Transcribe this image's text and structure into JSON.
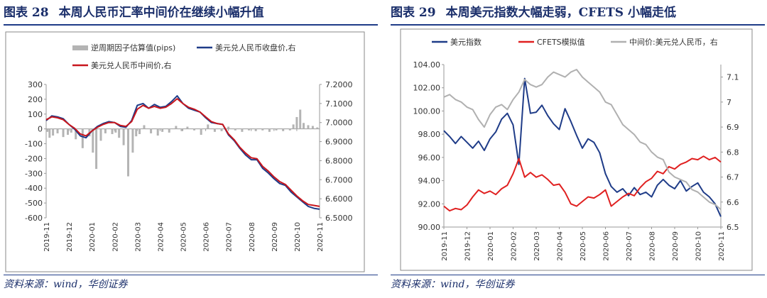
{
  "charts": [
    {
      "id": "left",
      "fig_label": "图表 28",
      "title": "本周人民币汇率中间价在继续小幅升值",
      "source": "资料来源：wind，华创证券",
      "chart_data": {
        "type": "bar+line",
        "x_labels": [
          "2019-11",
          "2019-12",
          "2020-01",
          "2020-02",
          "2020-03",
          "2020-04",
          "2020-05",
          "2020-06",
          "2020-07",
          "2020-08",
          "2020-09",
          "2020-10",
          "2020-11"
        ],
        "y_left": {
          "min": -600,
          "max": 300,
          "ticks": [
            "300",
            "200",
            "100",
            "0",
            "-100",
            "-200",
            "-300",
            "-400",
            "-500",
            "-600"
          ]
        },
        "y_right": {
          "min": 6.5,
          "max": 7.2,
          "ticks": [
            "7.2000",
            "7.1000",
            "7.0000",
            "6.9000",
            "6.8000",
            "6.7000",
            "6.6000",
            "6.5000"
          ]
        },
        "legend": {
          "placement": "top-right"
        },
        "grid": false,
        "series": [
          {
            "name": "逆周期因子估算值(pips)",
            "axis": "left",
            "kind": "bar",
            "color": "#b4b4b4",
            "x": [
              0.05,
              0.15,
              0.3,
              0.5,
              0.75,
              0.95,
              1.1,
              1.3,
              1.6,
              1.9,
              2.05,
              2.2,
              2.4,
              2.6,
              2.9,
              3.05,
              3.2,
              3.4,
              3.6,
              3.8,
              3.95,
              4.1,
              4.3,
              4.6,
              4.9,
              5.1,
              5.4,
              5.7,
              5.95,
              6.2,
              6.5,
              6.8,
              7.1,
              7.4,
              7.7,
              8.0,
              8.3,
              8.6,
              8.9,
              9.2,
              9.5,
              9.8,
              10.1,
              10.4,
              10.7,
              10.85,
              11.0,
              11.15,
              11.3,
              11.5,
              11.7,
              11.9
            ],
            "y": [
              -20,
              -60,
              -45,
              -30,
              -55,
              -40,
              -25,
              -70,
              -130,
              -50,
              -160,
              -270,
              -80,
              -30,
              -35,
              -25,
              -60,
              -110,
              -320,
              -160,
              -50,
              -35,
              25,
              -30,
              -45,
              -20,
              -25,
              20,
              -15,
              15,
              -10,
              -40,
              30,
              -20,
              -15,
              15,
              -10,
              -20,
              -10,
              -15,
              -10,
              -20,
              -10,
              -15,
              -10,
              30,
              80,
              130,
              40,
              25,
              20,
              10
            ]
          },
          {
            "name": "美元兑人民币收盘价,右",
            "axis": "right",
            "kind": "line",
            "color": "#1f3c88",
            "x": [
              0,
              0.25,
              0.5,
              0.75,
              1.0,
              1.25,
              1.5,
              1.75,
              2.0,
              2.25,
              2.5,
              2.75,
              3.0,
              3.25,
              3.5,
              3.75,
              4.0,
              4.25,
              4.5,
              4.75,
              5.0,
              5.25,
              5.5,
              5.75,
              6.0,
              6.25,
              6.5,
              6.75,
              7.0,
              7.25,
              7.5,
              7.75,
              8.0,
              8.25,
              8.5,
              8.75,
              9.0,
              9.25,
              9.5,
              9.75,
              10.0,
              10.25,
              10.5,
              10.75,
              11.0,
              11.25,
              11.5,
              11.75,
              12.0
            ],
            "y": [
              7.01,
              7.035,
              7.03,
              7.02,
              6.99,
              6.965,
              6.93,
              6.92,
              6.955,
              6.98,
              6.995,
              7.005,
              7.0,
              6.98,
              6.975,
              7.01,
              7.09,
              7.1,
              7.075,
              7.095,
              7.08,
              7.085,
              7.11,
              7.14,
              7.1,
              7.075,
              7.065,
              7.055,
              7.025,
              7.0,
              6.995,
              6.99,
              6.935,
              6.905,
              6.865,
              6.83,
              6.805,
              6.805,
              6.76,
              6.735,
              6.705,
              6.68,
              6.67,
              6.635,
              6.61,
              6.585,
              6.56,
              6.55,
              6.545
            ]
          },
          {
            "name": "美元兑人民币中间价,右",
            "axis": "right",
            "kind": "line",
            "color": "#c8161d",
            "x": [
              0,
              0.25,
              0.5,
              0.75,
              1.0,
              1.25,
              1.5,
              1.75,
              2.0,
              2.25,
              2.5,
              2.75,
              3.0,
              3.25,
              3.5,
              3.75,
              4.0,
              4.25,
              4.5,
              4.75,
              5.0,
              5.25,
              5.5,
              5.75,
              6.0,
              6.25,
              6.5,
              6.75,
              7.0,
              7.25,
              7.5,
              7.75,
              8.0,
              8.25,
              8.5,
              8.75,
              9.0,
              9.25,
              9.5,
              9.75,
              10.0,
              10.25,
              10.5,
              10.75,
              11.0,
              11.25,
              11.5,
              11.75,
              12.0
            ],
            "y": [
              7.015,
              7.03,
              7.025,
              7.015,
              6.99,
              6.97,
              6.94,
              6.93,
              6.955,
              6.975,
              6.99,
              7.0,
              7.0,
              6.985,
              6.98,
              7.005,
              7.07,
              7.09,
              7.075,
              7.085,
              7.075,
              7.08,
              7.1,
              7.125,
              7.1,
              7.08,
              7.07,
              7.055,
              7.03,
              7.005,
              6.995,
              6.99,
              6.94,
              6.91,
              6.87,
              6.84,
              6.815,
              6.81,
              6.77,
              6.745,
              6.715,
              6.69,
              6.675,
              6.645,
              6.615,
              6.59,
              6.57,
              6.565,
              6.56
            ]
          }
        ]
      }
    },
    {
      "id": "right",
      "fig_label": "图表 29",
      "title": "本周美元指数大幅走弱，CFETS 小幅走低",
      "source": "资料来源：wind，华创证券",
      "chart_data": {
        "type": "line",
        "x_labels": [
          "2019-11",
          "2019-12",
          "2020-01",
          "2020-02",
          "2020-03",
          "2020-04",
          "2020-05",
          "2020-06",
          "2020-07",
          "2020-08",
          "2020-09",
          "2020-10",
          "2020-11"
        ],
        "y_left": {
          "min": 90,
          "max": 104,
          "ticks": [
            "104.00",
            "102.00",
            "100.00",
            "98.00",
            "96.00",
            "94.00",
            "92.00",
            "90.00"
          ]
        },
        "y_right": {
          "min": 6.5,
          "max": 7.15,
          "ticks": [
            "7.1",
            "7",
            "6.9",
            "6.8",
            "6.7",
            "6.6",
            "6.5"
          ]
        },
        "legend": {
          "placement": "top"
        },
        "grid": false,
        "series": [
          {
            "name": "美元指数",
            "axis": "left",
            "color": "#1f3c88",
            "x": [
              0,
              0.25,
              0.5,
              0.75,
              1.0,
              1.25,
              1.5,
              1.75,
              2.0,
              2.25,
              2.5,
              2.75,
              3.0,
              3.25,
              3.5,
              3.75,
              4.0,
              4.25,
              4.5,
              4.75,
              5.0,
              5.25,
              5.5,
              5.75,
              6.0,
              6.25,
              6.5,
              6.75,
              7.0,
              7.25,
              7.5,
              7.75,
              8.0,
              8.25,
              8.5,
              8.75,
              9.0,
              9.25,
              9.5,
              9.75,
              10.0,
              10.25,
              10.5,
              10.75,
              11.0,
              11.25,
              11.5,
              11.75,
              12.0
            ],
            "y": [
              98.3,
              97.8,
              97.2,
              97.8,
              97.3,
              96.8,
              97.4,
              96.6,
              97.6,
              98.2,
              99.3,
              99.8,
              98.8,
              95.4,
              102.8,
              99.8,
              99.9,
              100.5,
              99.6,
              98.9,
              98.4,
              100.2,
              99.1,
              97.9,
              96.8,
              97.6,
              97.3,
              96.4,
              94.6,
              93.5,
              93.0,
              93.3,
              92.7,
              93.4,
              92.8,
              93.0,
              92.6,
              93.6,
              94.1,
              93.6,
              93.3,
              94.0,
              93.1,
              93.5,
              93.8,
              93.0,
              92.6,
              92.0,
              90.9
            ]
          },
          {
            "name": "CFETS模拟值",
            "axis": "left",
            "color": "#e02020",
            "x": [
              0,
              0.25,
              0.5,
              0.75,
              1.0,
              1.25,
              1.5,
              1.75,
              2.0,
              2.25,
              2.5,
              2.75,
              3.0,
              3.25,
              3.5,
              3.75,
              4.0,
              4.25,
              4.5,
              4.75,
              5.0,
              5.25,
              5.5,
              5.75,
              6.0,
              6.25,
              6.5,
              6.75,
              7.0,
              7.25,
              7.5,
              7.75,
              8.0,
              8.25,
              8.5,
              8.75,
              9.0,
              9.25,
              9.5,
              9.75,
              10.0,
              10.25,
              10.5,
              10.75,
              11.0,
              11.25,
              11.5,
              11.75,
              12.0
            ],
            "y": [
              91.8,
              91.4,
              91.6,
              91.5,
              91.9,
              92.6,
              93.2,
              92.9,
              93.1,
              92.8,
              93.3,
              93.6,
              94.6,
              95.9,
              94.3,
              94.7,
              94.3,
              94.5,
              94.1,
              93.6,
              93.7,
              93.0,
              92.0,
              91.8,
              92.2,
              92.6,
              92.5,
              92.8,
              93.2,
              91.8,
              92.2,
              92.6,
              92.9,
              92.7,
              93.4,
              93.9,
              94.2,
              94.8,
              94.6,
              95.2,
              95.0,
              95.4,
              95.6,
              95.9,
              95.8,
              96.1,
              95.8,
              96.0,
              95.6
            ]
          },
          {
            "name": "中间价:美元兑人民币，右",
            "axis": "right",
            "color": "#b0b0b0",
            "x": [
              0,
              0.25,
              0.5,
              0.75,
              1.0,
              1.25,
              1.5,
              1.75,
              2.0,
              2.25,
              2.5,
              2.75,
              3.0,
              3.25,
              3.5,
              3.75,
              4.0,
              4.25,
              4.5,
              4.75,
              5.0,
              5.25,
              5.5,
              5.75,
              6.0,
              6.25,
              6.5,
              6.75,
              7.0,
              7.25,
              7.5,
              7.75,
              8.0,
              8.25,
              8.5,
              8.75,
              9.0,
              9.25,
              9.5,
              9.75,
              10.0,
              10.25,
              10.5,
              10.75,
              11.0,
              11.25,
              11.5,
              11.75,
              12.0
            ],
            "y": [
              7.02,
              7.03,
              7.01,
              7.0,
              6.98,
              6.97,
              6.93,
              6.9,
              6.95,
              6.98,
              6.99,
              6.97,
              7.01,
              7.04,
              7.09,
              7.07,
              7.06,
              7.07,
              7.1,
              7.12,
              7.11,
              7.1,
              7.12,
              7.13,
              7.1,
              7.08,
              7.06,
              7.04,
              7.0,
              6.99,
              6.95,
              6.91,
              6.89,
              6.87,
              6.84,
              6.83,
              6.8,
              6.78,
              6.77,
              6.72,
              6.7,
              6.69,
              6.68,
              6.65,
              6.64,
              6.62,
              6.6,
              6.59,
              6.57
            ]
          }
        ]
      }
    }
  ]
}
